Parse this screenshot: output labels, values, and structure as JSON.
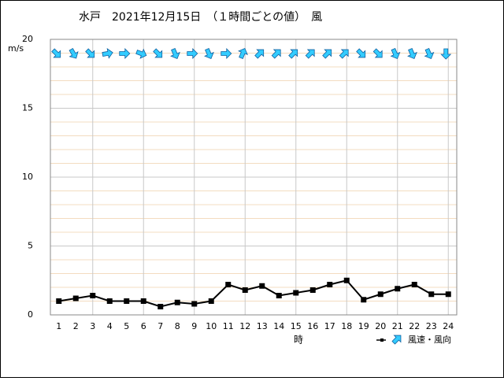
{
  "chart_data": {
    "type": "line",
    "title": "水戸　2021年12月15日　（１時間ごとの値）　風",
    "y_unit": "m/s",
    "x_label": "時",
    "categories": [
      "1",
      "2",
      "3",
      "4",
      "5",
      "6",
      "7",
      "8",
      "9",
      "10",
      "11",
      "12",
      "13",
      "14",
      "15",
      "16",
      "17",
      "18",
      "19",
      "20",
      "21",
      "22",
      "23",
      "24"
    ],
    "ylim": [
      0,
      20
    ],
    "yticks": [
      0,
      5,
      10,
      15,
      20
    ],
    "grid": true,
    "series": [
      {
        "name": "風速・風向",
        "color": "#000000",
        "arrow_color": "#33ccff",
        "values": [
          1.0,
          1.2,
          1.4,
          1.0,
          1.0,
          1.0,
          0.6,
          0.9,
          0.8,
          1.0,
          2.2,
          1.8,
          2.1,
          1.4,
          1.6,
          1.8,
          2.2,
          2.5,
          1.1,
          1.5,
          1.9,
          2.2,
          1.5,
          1.5
        ],
        "directions_deg": [
          135,
          150,
          135,
          80,
          90,
          110,
          135,
          157,
          90,
          157,
          90,
          22,
          45,
          45,
          45,
          45,
          45,
          45,
          135,
          135,
          157,
          157,
          157,
          180
        ]
      }
    ]
  }
}
